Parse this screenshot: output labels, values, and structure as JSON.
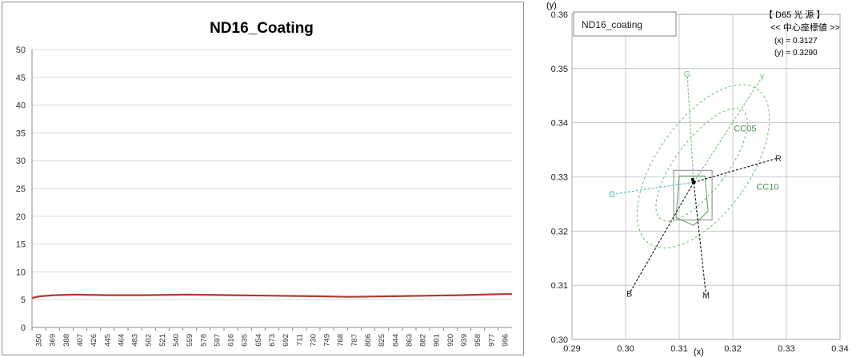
{
  "chart_data": [
    {
      "type": "line",
      "title": "ND16_Coating",
      "xlabel": "",
      "ylabel": "",
      "ylim": [
        0,
        50
      ],
      "yticks": [
        0,
        5,
        10,
        15,
        20,
        25,
        30,
        35,
        40,
        45,
        50
      ],
      "grid": true,
      "legend": "none",
      "x_tick_labels": [
        "350",
        "369",
        "388",
        "407",
        "426",
        "445",
        "464",
        "483",
        "502",
        "521",
        "540",
        "559",
        "578",
        "597",
        "616",
        "635",
        "654",
        "673",
        "692",
        "711",
        "730",
        "749",
        "768",
        "787",
        "806",
        "825",
        "844",
        "863",
        "882",
        "901",
        "920",
        "939",
        "958",
        "977",
        "996"
      ],
      "xlim": [
        350,
        1000
      ],
      "series": [
        {
          "color": "#b03a2e",
          "x": [
            350,
            360,
            380,
            407,
            450,
            500,
            560,
            620,
            680,
            740,
            780,
            830,
            880,
            930,
            960,
            990,
            1000
          ],
          "y": [
            5.3,
            5.6,
            5.8,
            5.9,
            5.8,
            5.8,
            5.9,
            5.8,
            5.7,
            5.6,
            5.5,
            5.6,
            5.7,
            5.8,
            5.9,
            6.0,
            6.0
          ]
        }
      ]
    },
    {
      "type": "scatter",
      "title": "",
      "legend_box_text": "ND16_coating",
      "annotation_lines": [
        "【 D65 光 源 】",
        "<< 中心座標値 >>",
        "(x) = 0.3127",
        "(y) = 0.3290"
      ],
      "xlabel": "(x)",
      "ylabel": "(y)",
      "xlim": [
        0.29,
        0.34
      ],
      "ylim": [
        0.3,
        0.36
      ],
      "xticks": [
        "0.29",
        "0.30",
        "0.31",
        "0.32",
        "0.33",
        "0.34"
      ],
      "yticks": [
        "0.30",
        "0.31",
        "0.32",
        "0.33",
        "0.34",
        "0.35",
        "0.36"
      ],
      "grid": true,
      "center": {
        "x": 0.3127,
        "y": 0.329
      },
      "sample_point": {
        "x": 0.3125,
        "y": 0.3295
      },
      "direction_labels": [
        {
          "label": "G",
          "x": 0.3115,
          "y": 0.349
        },
        {
          "label": "Y",
          "x": 0.3255,
          "y": 0.3485
        },
        {
          "label": "CC05",
          "x": 0.3223,
          "y": 0.339
        },
        {
          "label": "R",
          "x": 0.3285,
          "y": 0.3335
        },
        {
          "label": "CC10",
          "x": 0.3265,
          "y": 0.3282
        },
        {
          "label": "C",
          "x": 0.2975,
          "y": 0.3268
        },
        {
          "label": "B",
          "x": 0.3007,
          "y": 0.3085
        },
        {
          "label": "M",
          "x": 0.315,
          "y": 0.3082
        }
      ],
      "colors": {
        "ellipse": "#7cc47c",
        "cyan_line": "#59c7c7",
        "dark_line": "#222222"
      }
    }
  ]
}
